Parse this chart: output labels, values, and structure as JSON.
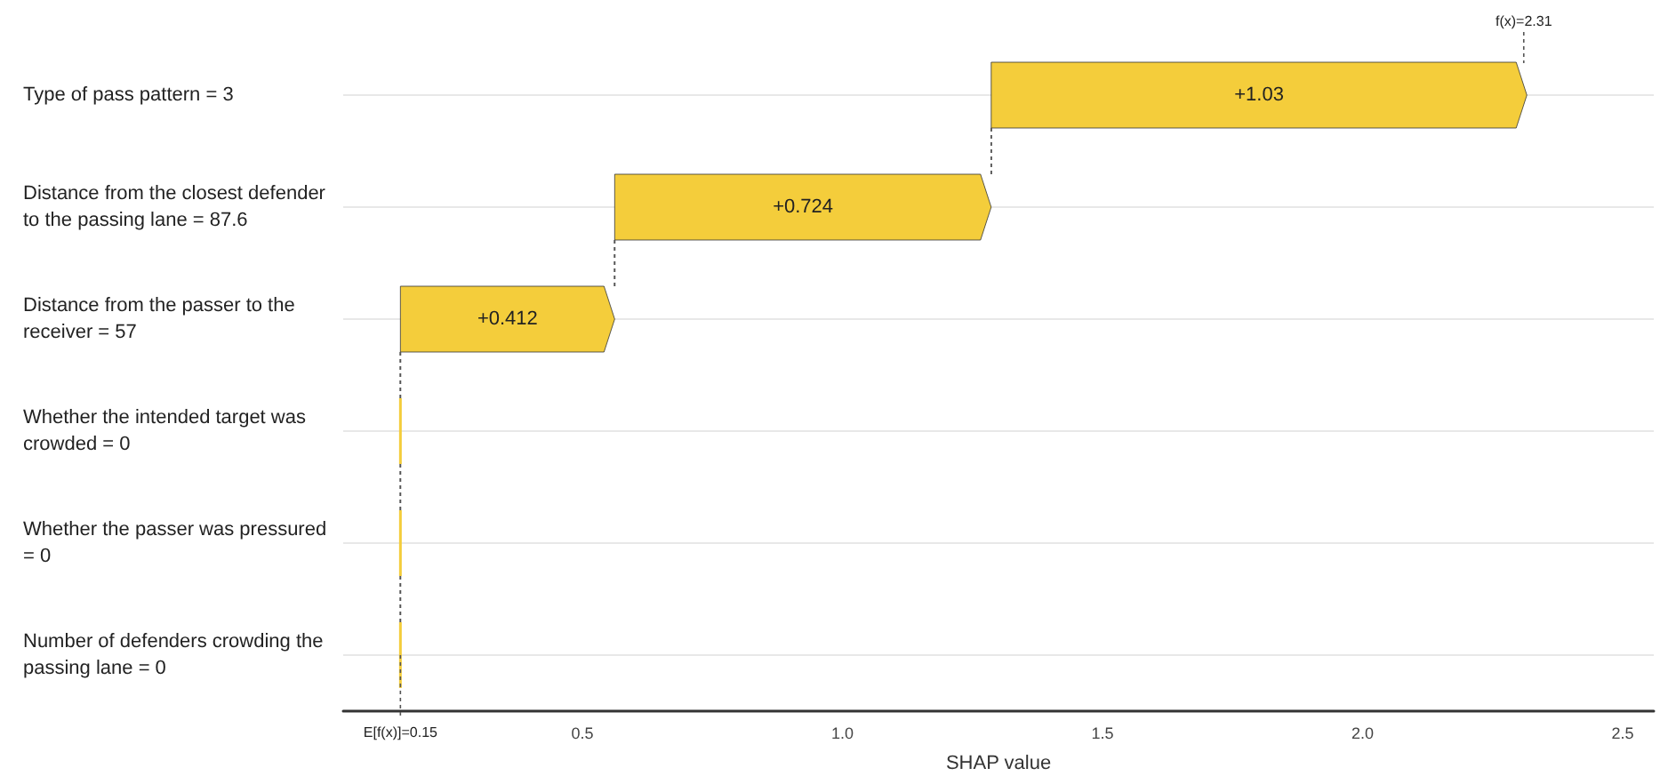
{
  "chart_data": {
    "type": "bar",
    "orientation": "horizontal",
    "xlabel": "SHAP value",
    "categories": [
      "Type of pass pattern = 3",
      "Distance from the closest defender to the passing lane = 87.6",
      "Distance from the passer to the receiver = 57",
      "Whether the intended target was crowded = 0",
      "Whether the passer was pressured = 0",
      "Number of defenders crowding the passing lane = 0"
    ],
    "base": [
      1.286,
      0.562,
      0.15,
      0.15,
      0.15,
      0.15
    ],
    "values": [
      1.03,
      0.724,
      0.412,
      0,
      0,
      0
    ],
    "value_labels": [
      "+1.03",
      "+0.724",
      "+0.412",
      null,
      null,
      null
    ],
    "color": "#f4cd3b",
    "xlim": [
      0.04,
      2.56
    ],
    "xticks": [
      0.5,
      {
        "value": 1,
        "label": "1.0"
      },
      1.5,
      {
        "value": 2,
        "label": "2.0"
      },
      2.5
    ],
    "grid": "y",
    "annotations": [
      {
        "text": "f(x)=2.31",
        "x": 2.31
      },
      {
        "text": "E[f(x)]=0.15",
        "x": 0.15
      }
    ]
  }
}
